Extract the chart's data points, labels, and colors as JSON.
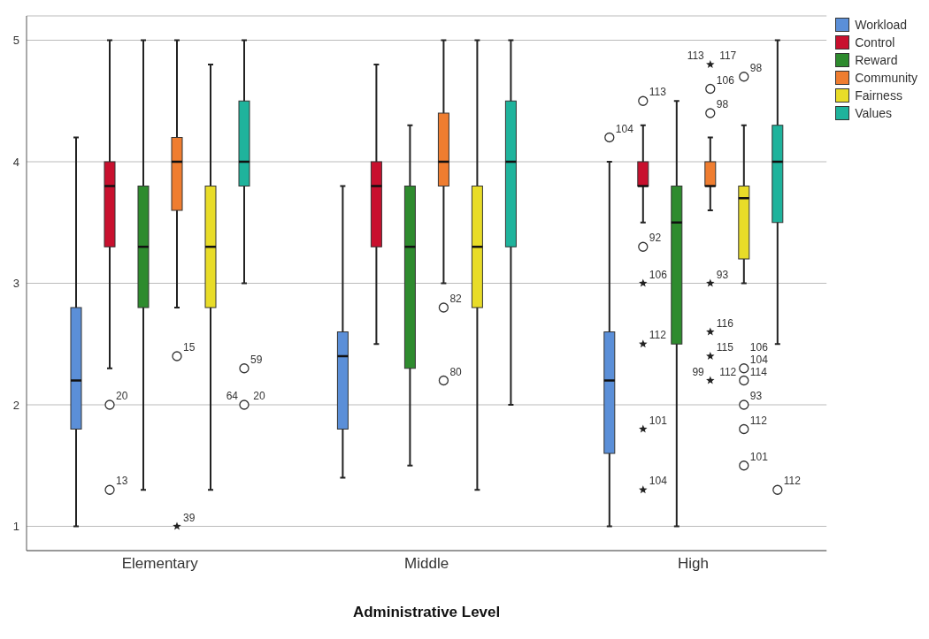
{
  "chart_data": {
    "type": "box",
    "xlabel": "Administrative Level",
    "categories": [
      "Elementary",
      "Middle",
      "High"
    ],
    "ylim": [
      0.8,
      5.2
    ],
    "yticks": [
      1,
      2,
      3,
      4,
      5
    ],
    "grid": "y",
    "legend": "top right",
    "series": [
      {
        "name": "Workload",
        "color": "#5b8fd8",
        "boxes": [
          {
            "low": 1,
            "q1": 1.8,
            "median": 2.2,
            "q3": 2.8,
            "high": 4.2
          },
          {
            "low": 1.4,
            "q1": 1.8,
            "median": 2.4,
            "q3": 2.6,
            "high": 3.8
          },
          {
            "low": 1,
            "q1": 1.6,
            "median": 2.2,
            "q3": 2.6,
            "high": 4.0,
            "outliers": [
              4.2
            ]
          }
        ]
      },
      {
        "name": "Control",
        "color": "#c8102e",
        "boxes": [
          {
            "low": 2.3,
            "q1": 3.3,
            "median": 3.8,
            "q3": 4.0,
            "high": 5,
            "outliers": [
              2.0,
              1.3
            ]
          },
          {
            "low": 2.5,
            "q1": 3.3,
            "median": 3.8,
            "q3": 4.0,
            "high": 4.8
          },
          {
            "low": 3.5,
            "q1": 3.8,
            "median": 3.8,
            "q3": 4.0,
            "high": 4.3,
            "outliers": [
              4.5,
              3.3,
              3.0,
              2.5,
              1.8,
              1.3
            ]
          }
        ]
      },
      {
        "name": "Reward",
        "color": "#2e8b2e",
        "boxes": [
          {
            "low": 1.3,
            "q1": 2.8,
            "median": 3.3,
            "q3": 3.8,
            "high": 5
          },
          {
            "low": 1.5,
            "q1": 2.3,
            "median": 3.3,
            "q3": 3.8,
            "high": 4.3
          },
          {
            "low": 1,
            "q1": 2.5,
            "median": 3.5,
            "q3": 3.8,
            "high": 4.5
          }
        ]
      },
      {
        "name": "Community",
        "color": "#ef7d30",
        "boxes": [
          {
            "low": 2.8,
            "q1": 3.6,
            "median": 4.0,
            "q3": 4.2,
            "high": 5,
            "outliers": [
              2.4,
              1.0
            ]
          },
          {
            "low": 3.0,
            "q1": 3.8,
            "median": 4.0,
            "q3": 4.4,
            "high": 5,
            "outliers": [
              2.8,
              2.2
            ]
          },
          {
            "low": 3.6,
            "q1": 3.8,
            "median": 3.8,
            "q3": 4.0,
            "high": 4.2,
            "outliers": [
              4.8,
              4.6,
              4.4,
              3.0,
              2.6,
              2.4,
              2.2
            ]
          }
        ]
      },
      {
        "name": "Fairness",
        "color": "#e8dc28",
        "boxes": [
          {
            "low": 1.3,
            "q1": 2.8,
            "median": 3.3,
            "q3": 3.8,
            "high": 4.8
          },
          {
            "low": 1.3,
            "q1": 2.8,
            "median": 3.3,
            "q3": 3.8,
            "high": 5
          },
          {
            "low": 3.0,
            "q1": 3.2,
            "median": 3.7,
            "q3": 3.8,
            "high": 4.3,
            "outliers": [
              4.7,
              2.3,
              2.2,
              2.0,
              1.8,
              1.5
            ]
          }
        ]
      },
      {
        "name": "Values",
        "color": "#1fb39c",
        "boxes": [
          {
            "low": 3.0,
            "q1": 3.8,
            "median": 4.0,
            "q3": 4.5,
            "high": 5,
            "outliers": [
              2.3,
              2.0
            ]
          },
          {
            "low": 2.0,
            "q1": 3.3,
            "median": 4.0,
            "q3": 4.5,
            "high": 5
          },
          {
            "low": 2.5,
            "q1": 3.5,
            "median": 4.0,
            "q3": 4.3,
            "high": 5,
            "outliers": [
              1.3
            ]
          }
        ]
      }
    ],
    "annotations": [
      "104",
      "20",
      "13",
      "113",
      "92",
      "106",
      "112",
      "101",
      "104",
      "15",
      "39",
      "82",
      "80",
      "113 117",
      "106",
      "98",
      "93",
      "116",
      "115",
      "99 112",
      "98",
      "106\n104",
      "114",
      "93",
      "112",
      "101",
      "59",
      "64 20",
      "112"
    ]
  }
}
